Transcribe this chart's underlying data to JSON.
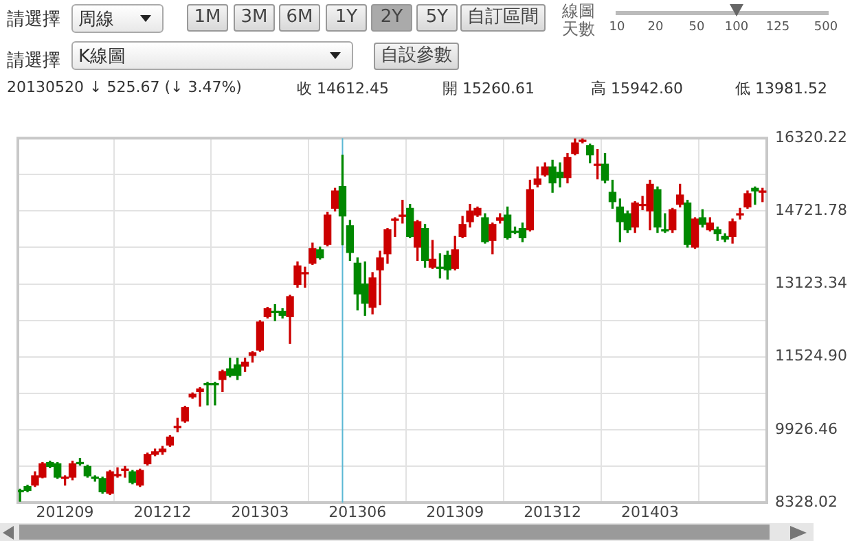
{
  "chart_data": {
    "type": "candlestick",
    "annotations": [
      "請選擇",
      "周線",
      "1M",
      "3M",
      "6M",
      "1Y",
      "2Y",
      "5Y",
      "自訂區間",
      "線圖天數",
      "10",
      "20",
      "50",
      "100",
      "125",
      "500",
      "請選擇",
      "K線圖",
      "自設參數",
      "20130520",
      "↓ 525.67 (↓ 3.47%)",
      "收 14612.45",
      "開 15260.61",
      "高 15942.60",
      "低 13981.52"
    ],
    "x": [
      "2012-07-23",
      "2012-07-30",
      "2012-08-06",
      "2012-08-13",
      "2012-08-20",
      "2012-08-27",
      "2012-09-03",
      "2012-09-10",
      "2012-09-17",
      "2012-09-24",
      "2012-10-01",
      "2012-10-08",
      "2012-10-15",
      "2012-10-22",
      "2012-10-29",
      "2012-11-05",
      "2012-11-12",
      "2012-11-19",
      "2012-11-26",
      "2012-12-03",
      "2012-12-10",
      "2012-12-17",
      "2012-12-24",
      "2012-12-31",
      "2013-01-07",
      "2013-01-14",
      "2013-01-21",
      "2013-01-28",
      "2013-02-04",
      "2013-02-11",
      "2013-02-18",
      "2013-02-25",
      "2013-03-04",
      "2013-03-11",
      "2013-03-18",
      "2013-03-25",
      "2013-04-01",
      "2013-04-08",
      "2013-04-15",
      "2013-04-22",
      "2013-04-29",
      "2013-05-06",
      "2013-05-13",
      "2013-05-20",
      "2013-05-27",
      "2013-06-03",
      "2013-06-10",
      "2013-06-17",
      "2013-06-24",
      "2013-07-01",
      "2013-07-08",
      "2013-07-15",
      "2013-07-22",
      "2013-07-29",
      "2013-08-05",
      "2013-08-12",
      "2013-08-19",
      "2013-08-26",
      "2013-09-02",
      "2013-09-09",
      "2013-09-16",
      "2013-09-23",
      "2013-09-30",
      "2013-10-07",
      "2013-10-14",
      "2013-10-21",
      "2013-10-28",
      "2013-11-04",
      "2013-11-11",
      "2013-11-18",
      "2013-11-25",
      "2013-12-02",
      "2013-12-09",
      "2013-12-16",
      "2013-12-23",
      "2013-12-30",
      "2014-01-06",
      "2014-01-13",
      "2014-01-20",
      "2014-01-27",
      "2014-02-03",
      "2014-02-10",
      "2014-02-17",
      "2014-02-24",
      "2014-03-03",
      "2014-03-10",
      "2014-03-17",
      "2014-03-24",
      "2014-03-31",
      "2014-04-07",
      "2014-04-14",
      "2014-04-21",
      "2014-04-28",
      "2014-05-05",
      "2014-05-12",
      "2014-05-19",
      "2014-05-26",
      "2014-06-02",
      "2014-06-09",
      "2014-06-16"
    ],
    "ohlc": [
      [
        8592,
        8622,
        8357,
        8563
      ],
      [
        8680,
        8710,
        8563,
        8592
      ],
      [
        8710,
        9003,
        8680,
        8915
      ],
      [
        8885,
        9208,
        8870,
        9179
      ],
      [
        9208,
        9237,
        9091,
        9120
      ],
      [
        9179,
        9208,
        8856,
        8885
      ],
      [
        8856,
        8915,
        8710,
        8885
      ],
      [
        8885,
        9237,
        8827,
        9179
      ],
      [
        9208,
        9296,
        9149,
        9179
      ],
      [
        9120,
        9149,
        8885,
        8915
      ],
      [
        8885,
        8915,
        8797,
        8856
      ],
      [
        8856,
        8885,
        8533,
        8563
      ],
      [
        8533,
        9032,
        8504,
        9003
      ],
      [
        8915,
        9091,
        8885,
        8944
      ],
      [
        9032,
        9120,
        8885,
        9061
      ],
      [
        9003,
        9032,
        8739,
        8768
      ],
      [
        8710,
        9061,
        8680,
        9032
      ],
      [
        9179,
        9413,
        9149,
        9384
      ],
      [
        9384,
        9501,
        9355,
        9443
      ],
      [
        9443,
        9560,
        9384,
        9501
      ],
      [
        9589,
        9794,
        9560,
        9765
      ],
      [
        9970,
        10176,
        9882,
        10000
      ],
      [
        10117,
        10440,
        10088,
        10410
      ],
      [
        10645,
        10733,
        10616,
        10704
      ],
      [
        10762,
        10850,
        10440,
        10821
      ],
      [
        10938,
        10967,
        10469,
        10909
      ],
      [
        10938,
        10967,
        10469,
        10909
      ],
      [
        11026,
        11231,
        10762,
        11202
      ],
      [
        11261,
        11496,
        11085,
        11114
      ],
      [
        11349,
        11496,
        11026,
        11114
      ],
      [
        11320,
        11496,
        11202,
        11408
      ],
      [
        11554,
        11642,
        11408,
        11613
      ],
      [
        11671,
        12317,
        11642,
        12288
      ],
      [
        12405,
        12610,
        12376,
        12581
      ],
      [
        12522,
        12669,
        12317,
        12493
      ],
      [
        12522,
        12581,
        12376,
        12434
      ],
      [
        12405,
        12874,
        11818,
        12845
      ],
      [
        13109,
        13607,
        13050,
        13519
      ],
      [
        13343,
        13490,
        13050,
        13372
      ],
      [
        13578,
        14018,
        13549,
        13900
      ],
      [
        13871,
        13930,
        13666,
        13695
      ],
      [
        13988,
        14692,
        13959,
        14634
      ],
      [
        14781,
        15220,
        14722,
        15162
      ],
      [
        15260.61,
        15942.6,
        13981.52,
        14612.45
      ],
      [
        14399,
        14516,
        13637,
        13812
      ],
      [
        13578,
        13695,
        12551,
        12903
      ],
      [
        13123,
        13607,
        12434,
        12698
      ],
      [
        12610,
        13372,
        12464,
        13255
      ],
      [
        13431,
        13842,
        12669,
        13695
      ],
      [
        13783,
        14340,
        13578,
        14311
      ],
      [
        14516,
        14575,
        14165,
        14546
      ],
      [
        14604,
        14957,
        14458,
        14634
      ],
      [
        14781,
        14868,
        14135,
        14165
      ],
      [
        13930,
        14516,
        13637,
        14487
      ],
      [
        14340,
        14428,
        13490,
        13637
      ],
      [
        13490,
        14077,
        13460,
        13666
      ],
      [
        13490,
        13783,
        13255,
        13460
      ],
      [
        13754,
        13842,
        13226,
        13431
      ],
      [
        13460,
        14165,
        13431,
        13871
      ],
      [
        14165,
        14604,
        14135,
        14428
      ],
      [
        14487,
        14868,
        14370,
        14722
      ],
      [
        14634,
        14810,
        14604,
        14781
      ],
      [
        14575,
        14663,
        14018,
        14047
      ],
      [
        14077,
        14458,
        13783,
        14428
      ],
      [
        14516,
        14663,
        14458,
        14575
      ],
      [
        14634,
        14810,
        14106,
        14135
      ],
      [
        14282,
        14370,
        14223,
        14252
      ],
      [
        14340,
        14458,
        14047,
        14135
      ],
      [
        14311,
        15397,
        14282,
        15191
      ],
      [
        15308,
        15690,
        15250,
        15426
      ],
      [
        15514,
        15778,
        15484,
        15690
      ],
      [
        15690,
        15836,
        15132,
        15338
      ],
      [
        15572,
        15778,
        15250,
        15455
      ],
      [
        15455,
        15983,
        15338,
        15895
      ],
      [
        15983,
        16305,
        15953,
        16217
      ],
      [
        16247,
        16305,
        16217,
        16276
      ],
      [
        16159,
        16188,
        15778,
        15953
      ],
      [
        15719,
        16071,
        15426,
        15749
      ],
      [
        15749,
        15983,
        15338,
        15397
      ],
      [
        15132,
        15397,
        14781,
        14927
      ],
      [
        14810,
        14986,
        14047,
        14487
      ],
      [
        14663,
        14722,
        14252,
        14311
      ],
      [
        14370,
        14927,
        14252,
        14898
      ],
      [
        14839,
        15044,
        14751,
        14868
      ],
      [
        14722,
        15397,
        14311,
        15308
      ],
      [
        15191,
        15250,
        14252,
        14370
      ],
      [
        14311,
        14663,
        14252,
        14282
      ],
      [
        14311,
        14781,
        14252,
        14751
      ],
      [
        14868,
        15308,
        14810,
        15073
      ],
      [
        14898,
        14957,
        13930,
        13988
      ],
      [
        13930,
        14575,
        13900,
        14546
      ],
      [
        14575,
        14751,
        14370,
        14428
      ],
      [
        14311,
        14575,
        14282,
        14458
      ],
      [
        14311,
        14370,
        14077,
        14223
      ],
      [
        14165,
        14223,
        14047,
        14106
      ],
      [
        14165,
        14546,
        14018,
        14487
      ],
      [
        14634,
        14781,
        14546,
        14663
      ],
      [
        14810,
        15162,
        14781,
        15103
      ],
      [
        15220,
        15250,
        14868,
        15162
      ],
      [
        15132,
        15220,
        14927,
        15162
      ]
    ],
    "colors": [
      "#008800",
      "#008800",
      "#cc0000",
      "#cc0000",
      "#008800",
      "#008800",
      "#cc0000",
      "#cc0000",
      "#008800",
      "#008800",
      "#008800",
      "#008800",
      "#cc0000",
      "#cc0000",
      "#cc0000",
      "#008800",
      "#cc0000",
      "#cc0000",
      "#cc0000",
      "#cc0000",
      "#cc0000",
      "#cc0000",
      "#cc0000",
      "#cc0000",
      "#cc0000",
      "#008800",
      "#008800",
      "#cc0000",
      "#008800",
      "#008800",
      "#cc0000",
      "#cc0000",
      "#cc0000",
      "#cc0000",
      "#008800",
      "#008800",
      "#cc0000",
      "#cc0000",
      "#cc0000",
      "#cc0000",
      "#008800",
      "#cc0000",
      "#cc0000",
      "#008800",
      "#008800",
      "#008800",
      "#008800",
      "#cc0000",
      "#cc0000",
      "#cc0000",
      "#cc0000",
      "#cc0000",
      "#008800",
      "#cc0000",
      "#008800",
      "#cc0000",
      "#008800",
      "#008800",
      "#cc0000",
      "#cc0000",
      "#cc0000",
      "#cc0000",
      "#008800",
      "#cc0000",
      "#cc0000",
      "#008800",
      "#008800",
      "#008800",
      "#cc0000",
      "#cc0000",
      "#cc0000",
      "#008800",
      "#008800",
      "#cc0000",
      "#cc0000",
      "#cc0000",
      "#008800",
      "#cc0000",
      "#008800",
      "#008800",
      "#008800",
      "#008800",
      "#cc0000",
      "#cc0000",
      "#cc0000",
      "#008800",
      "#008800",
      "#cc0000",
      "#cc0000",
      "#008800",
      "#cc0000",
      "#008800",
      "#cc0000",
      "#008800",
      "#008800",
      "#cc0000",
      "#cc0000",
      "#cc0000",
      "#008800",
      "#cc0000"
    ],
    "xlim": [
      "2012-07-21",
      "2014-06-20"
    ],
    "xticks": [
      {
        "value": "2012-09-03",
        "label": "201209"
      },
      {
        "value": "2012-12-03",
        "label": "201212"
      },
      {
        "value": "2013-03-04",
        "label": "201303"
      },
      {
        "value": "2013-06-03",
        "label": "201306"
      },
      {
        "value": "2013-09-02",
        "label": "201309"
      },
      {
        "value": "2013-12-02",
        "label": "201312"
      },
      {
        "value": "2014-03-03",
        "label": "201403"
      }
    ],
    "ylim": [
      8328.02,
      16320.22
    ],
    "yticks": [
      8328.02,
      {
        "value": 9127.24,
        "label": null
      },
      9926.46,
      {
        "value": 10725.68,
        "label": null
      },
      {
        "value": 11524.9,
        "label": "11524.90"
      },
      {
        "value": 12324.12,
        "label": null
      },
      13123.34,
      {
        "value": 13922.56,
        "label": null
      },
      14721.78,
      {
        "value": 15521,
        "label": null
      },
      16320.22
    ],
    "ref_lines": [
      {
        "axis": "x",
        "value": "2013-05-20",
        "color": "#5bb8d4"
      }
    ],
    "grid": true
  }
}
